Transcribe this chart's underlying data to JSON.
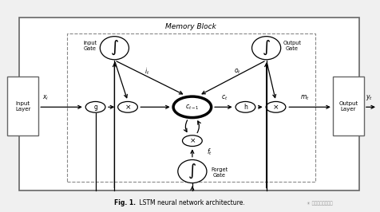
{
  "bg_color": "#f0f0f0",
  "fig_bg": "#f0f0f0",
  "title_bold": "Fig. 1.",
  "title_normal": " LSTM neural network architecture.",
  "memory_block_label": "Memory Block",
  "input_layer_label": "Input\nLayer",
  "output_layer_label": "Output\nLayer",
  "input_gate_label": "Input\nGate",
  "output_gate_label": "Output\nGate",
  "forget_gate_label": "Forget\nGate",
  "watermark": "当安通过机器学习"
}
